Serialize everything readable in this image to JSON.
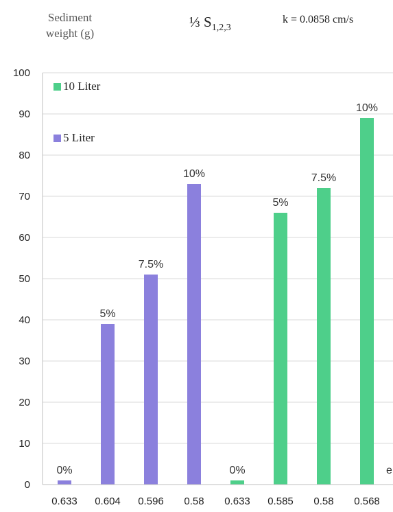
{
  "header": {
    "ylabel_line1": "Sediment",
    "ylabel_line2": "weight (g)",
    "subtitle_frac": "⅓",
    "subtitle_main": "S",
    "subtitle_sub": "1,2,3",
    "k_value": "k = 0.0858 cm/s"
  },
  "chart_data": {
    "type": "bar",
    "categories": [
      "0.633",
      "0.604",
      "0.596",
      "0.58",
      "0.633",
      "0.585",
      "0.58",
      "0.568"
    ],
    "x_axis_trailing_label": "e",
    "ylim": [
      0,
      100
    ],
    "yticks": [
      0,
      10,
      20,
      30,
      40,
      50,
      60,
      70,
      80,
      90,
      100
    ],
    "grid": true,
    "legend_position": "top-left",
    "series": [
      {
        "name": "5 Liter",
        "color": "#8b80dd",
        "values": [
          1,
          39,
          51,
          73,
          null,
          null,
          null,
          null
        ],
        "labels": [
          "0%",
          "5%",
          "7.5%",
          "10%",
          null,
          null,
          null,
          null
        ]
      },
      {
        "name": "10 Liter",
        "color": "#4ecf8a",
        "values": [
          null,
          null,
          null,
          null,
          1,
          66,
          72,
          89
        ],
        "labels": [
          null,
          null,
          null,
          null,
          "0%",
          "5%",
          "7.5%",
          "10%"
        ]
      }
    ],
    "legend_order": [
      "10 Liter",
      "5 Liter"
    ]
  }
}
